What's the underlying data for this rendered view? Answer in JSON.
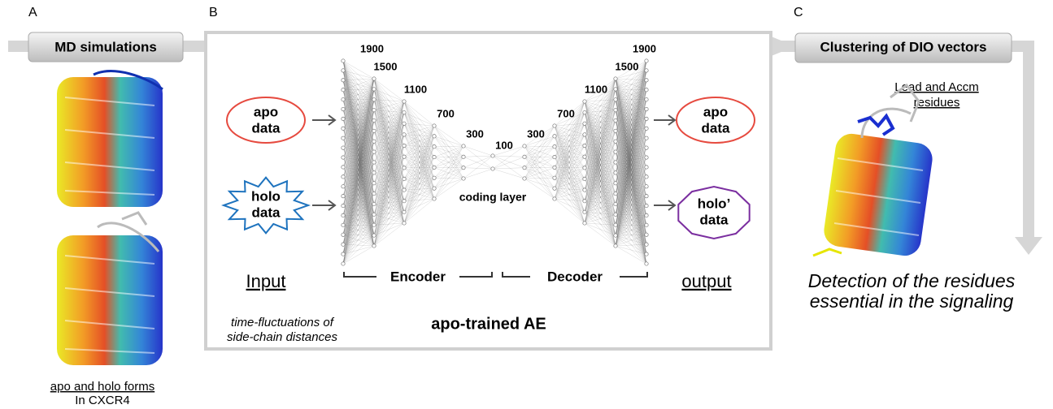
{
  "panel_a": {
    "label": "A",
    "title": "MD simulations",
    "caption_line1": "apo and holo forms",
    "caption_line2": "In CXCR4"
  },
  "panel_b": {
    "label": "B",
    "input": {
      "apo": [
        "apo",
        "data"
      ],
      "holo": [
        "holo",
        "data"
      ],
      "title": "Input",
      "note_line1": "time-fluctuations of",
      "note_line2": "side-chain distances"
    },
    "layers": [
      1900,
      1500,
      1100,
      700,
      300,
      100,
      300,
      700,
      1100,
      1500,
      1900
    ],
    "coding_layer": "coding layer",
    "encoder": "Encoder",
    "decoder": "Decoder",
    "output": {
      "apo": [
        "apo",
        "data"
      ],
      "holo": [
        "holo’",
        "data"
      ],
      "title": "output"
    },
    "title": "apo-trained AE"
  },
  "panel_c": {
    "label": "C",
    "title": "Clustering of DIO vectors",
    "annotation_line1": "Lead and Accm",
    "annotation_line2": "residues",
    "conclusion_line1": "Detection of the residues",
    "conclusion_line2": "essential in the signaling"
  }
}
